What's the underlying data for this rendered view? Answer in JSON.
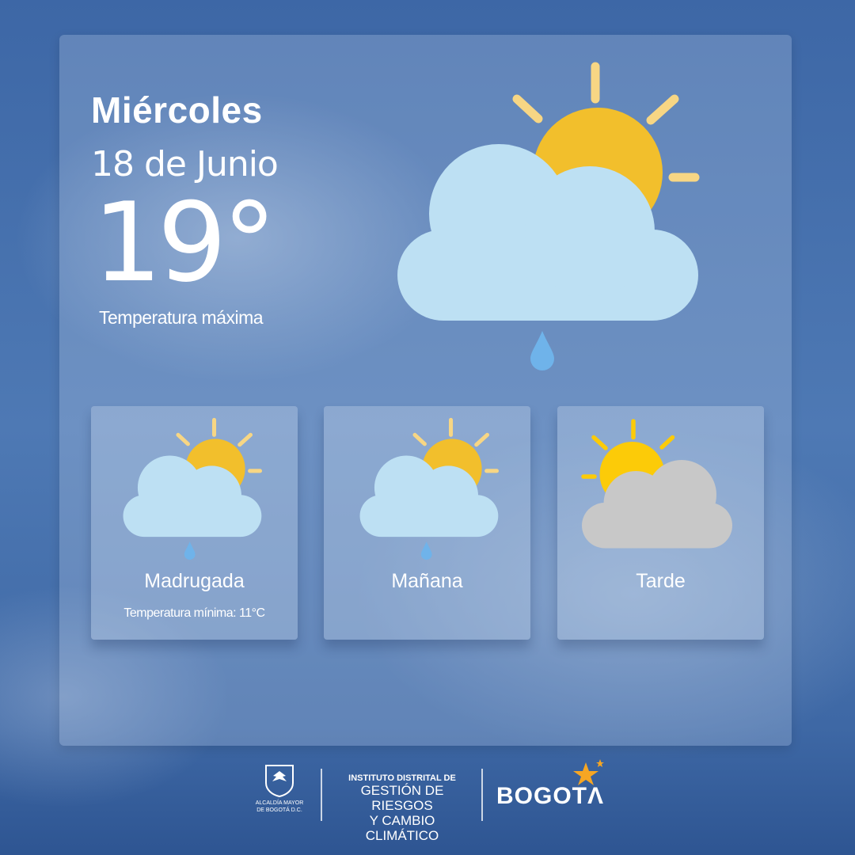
{
  "header": {
    "day": "Miércoles",
    "date": "18 de Junio",
    "max_temp": "19°",
    "max_label": "Temperatura máxima"
  },
  "main_icon": "partly-cloudy-rain-icon",
  "periods": [
    {
      "name": "Madrugada",
      "icon": "partly-cloudy-rain-icon",
      "note": "Temperatura mínima: 11°C"
    },
    {
      "name": "Mañana",
      "icon": "partly-cloudy-rain-icon"
    },
    {
      "name": "Tarde",
      "icon": "partly-cloudy-icon"
    }
  ],
  "colors": {
    "sun": "#f2bf2c",
    "sun_ray": "#f7d684",
    "cloud": "#bde0f3",
    "drop": "#6fb3ea",
    "grey_cloud": "#c8c8c8",
    "tarde_sun": "#fccb08"
  },
  "footer": {
    "alcaldia": "ALCALDÍA MAYOR DE BOGOTÁ D.C.",
    "idiger_line1": "INSTITUTO DISTRITAL DE",
    "idiger_line2": "GESTIÓN DE RIESGOS",
    "idiger_line3": "Y CAMBIO CLIMÁTICO",
    "bogota": "BOGOTΛ"
  }
}
